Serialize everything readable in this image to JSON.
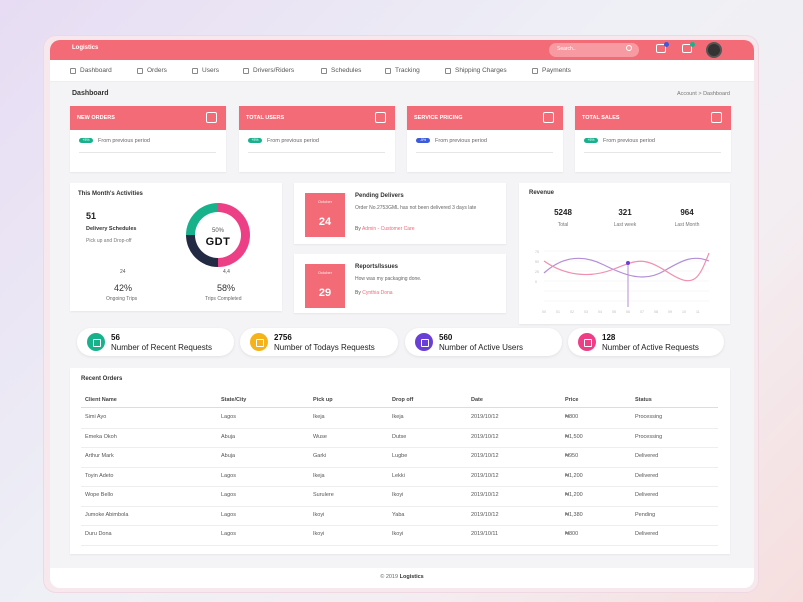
{
  "brand": "Logistics",
  "search_placeholder": "Search..",
  "nav": [
    "Dashboard",
    "Orders",
    "Users",
    "Drivers/Riders",
    "Schedules",
    "Tracking",
    "Shipping Charges",
    "Payments"
  ],
  "page_title": "Dashboard",
  "breadcrumb": "Account  >  Dashboard",
  "stat_cards": [
    {
      "label": "NEW ORDERS",
      "badge": "+5%",
      "text": "From previous period",
      "badge_color": "#17b28c"
    },
    {
      "label": "TOTAL USERS",
      "badge": "+5%",
      "text": "From previous period",
      "badge_color": "#17b28c"
    },
    {
      "label": "SERVICE PRICING",
      "badge": "-5%",
      "text": "From previous period",
      "badge_color": "#3b5bdb"
    },
    {
      "label": "TOTAL SALES",
      "badge": "+5%",
      "text": "From previous period",
      "badge_color": "#17b28c"
    }
  ],
  "activities": {
    "title": "This Month's Activities",
    "count": "51",
    "label": "Delivery Schedules",
    "sub": "Pick up and Drop-off",
    "donut_pct": "50%",
    "donut_logo": "GDT",
    "left_small": "24",
    "right_small": "4,4",
    "left_pct": "42%",
    "left_pct_label": "Ongoing Trips",
    "right_pct": "58%",
    "right_pct_label": "Trips Completed"
  },
  "events": [
    {
      "month": "October",
      "day": "24",
      "title": "Pending Delivers",
      "desc": "Order No.2753GML has not been delivered 3 days late",
      "by_prefix": "By",
      "by": "Admin - Customer Care"
    },
    {
      "month": "October",
      "day": "29",
      "title": "Reports/Issues",
      "desc": "How was my packaging done.",
      "by_prefix": "By",
      "by": "Cynthia Dona"
    }
  ],
  "revenue": {
    "title": "Revenue",
    "stats": [
      {
        "value": "5248",
        "label": "Total"
      },
      {
        "value": "321",
        "label": "Last week"
      },
      {
        "value": "964",
        "label": "Last Month"
      }
    ]
  },
  "requests": [
    {
      "num": "56",
      "label": "Number of Recent Requests",
      "color": "#17b28c"
    },
    {
      "num": "2756",
      "label": "Number of Todays Requests",
      "color": "#f6b21b"
    },
    {
      "num": "560",
      "label": "Number of Active Users",
      "color": "#6a3fd6"
    },
    {
      "num": "128",
      "label": "Number of Active Requests",
      "color": "#ec3f86"
    }
  ],
  "orders": {
    "title": "Recent Orders",
    "headers": [
      "Client Name",
      "State/City",
      "Pick up",
      "Drop off",
      "Date",
      "Price",
      "Status"
    ],
    "rows": [
      [
        "Simi Ayo",
        "Lagos",
        "Ikeja",
        "Ikeja",
        "2019/10/12",
        "₦800",
        "Processing"
      ],
      [
        "Emeka Okoh",
        "Abuja",
        "Wuse",
        "Dutse",
        "2019/10/12",
        "₦1,500",
        "Processing"
      ],
      [
        "Arthur Mark",
        "Abuja",
        "Garki",
        "Lugbe",
        "2019/10/12",
        "₦950",
        "Delivered"
      ],
      [
        "Toyin Adeto",
        "Lagos",
        "Ikeja",
        "Lekki",
        "2019/10/12",
        "₦1,200",
        "Delivered"
      ],
      [
        "Wope Bello",
        "Lagos",
        "Surulere",
        "Ikoyi",
        "2019/10/12",
        "₦1,200",
        "Delivered"
      ],
      [
        "Jumoke Abimbola",
        "Lagos",
        "Ikoyi",
        "Yaba",
        "2019/10/12",
        "₦1,380",
        "Pending"
      ],
      [
        "Duru Dona",
        "Lagos",
        "Ikoyi",
        "Ikoyi",
        "2019/10/11",
        "₦800",
        "Delivered"
      ]
    ]
  },
  "footer": {
    "prefix": "© 2019",
    "brand": "Logistics"
  },
  "colors": {
    "accent": "#f26b76",
    "purple_line": "#b48fd6",
    "pink_line": "#f08fb0"
  }
}
